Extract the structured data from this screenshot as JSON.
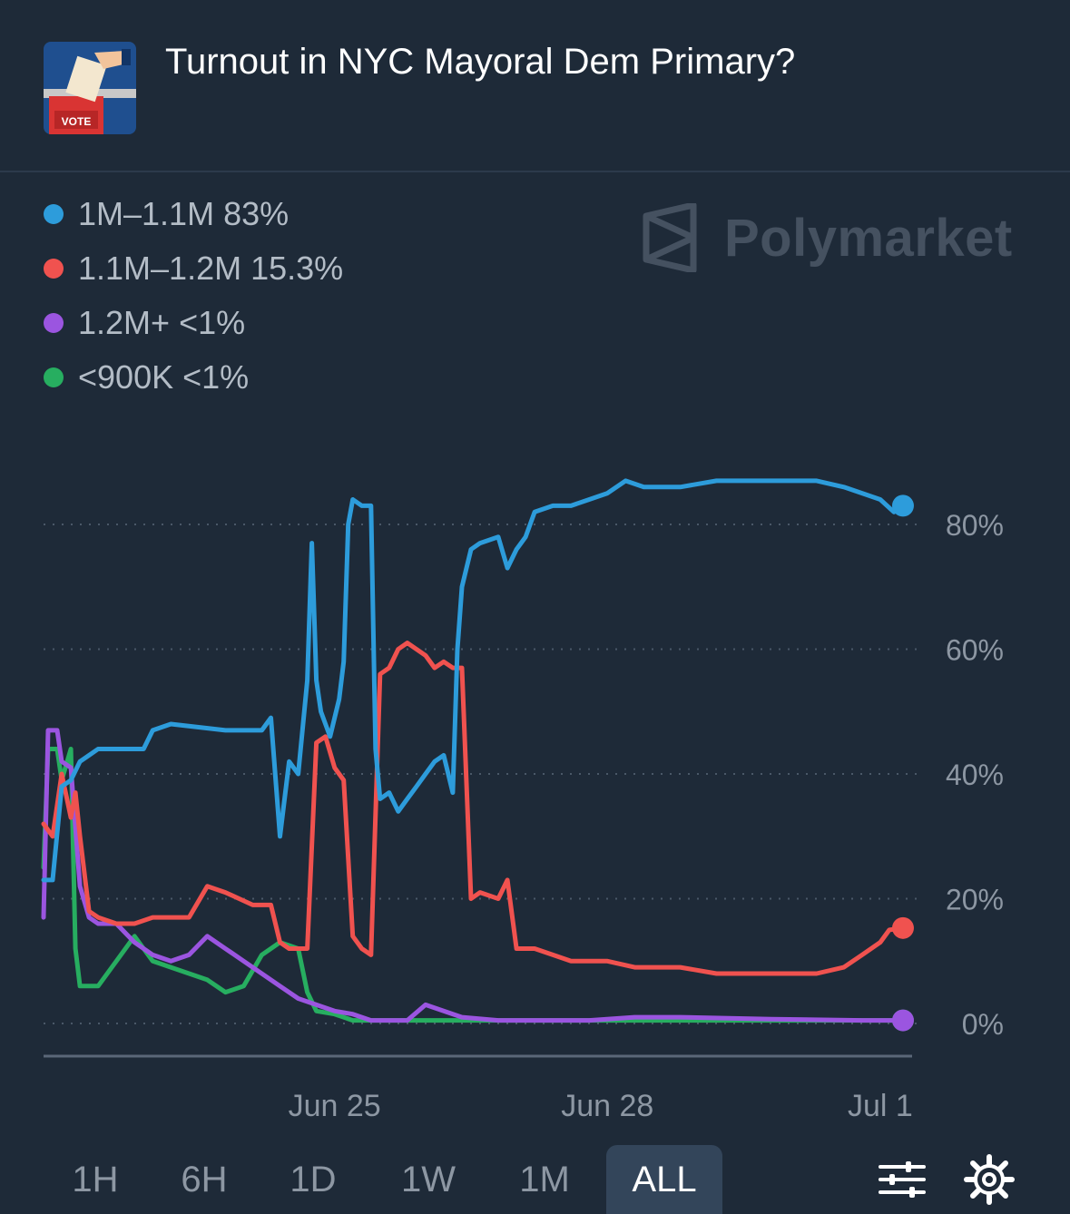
{
  "header": {
    "title": "Turnout in NYC Mayoral Dem Primary?",
    "thumbnail_icon": "ballot-box-icon",
    "thumbnail_label": "VOTE"
  },
  "watermark": {
    "text": "Polymarket"
  },
  "legend": [
    {
      "label": "1M–1.1M",
      "value": "83%",
      "color": "#2d9cdb"
    },
    {
      "label": "1.1M–1.2M",
      "value": "15.3%",
      "color": "#f0524f"
    },
    {
      "label": "1.2M+",
      "value": "<1%",
      "color": "#9b55e0"
    },
    {
      "label": "<900K",
      "value": "<1%",
      "color": "#27ae60"
    }
  ],
  "chart_data": {
    "type": "line",
    "x_ticks": [
      {
        "label": "Jun 25",
        "x": 3.2
      },
      {
        "label": "Jun 28",
        "x": 6.2
      },
      {
        "label": "Jul 1",
        "x": 9.2
      }
    ],
    "xlim": [
      0,
      9.55
    ],
    "y_ticks": [
      0,
      20,
      40,
      60,
      80
    ],
    "y_tick_labels": [
      "0%",
      "20%",
      "40%",
      "60%",
      "80%"
    ],
    "ylim": [
      0,
      93
    ],
    "y_unit": "%",
    "grid": "horizontal-dotted",
    "series": [
      {
        "name": "1M–1.1M",
        "color": "#2d9cdb",
        "points": [
          [
            0,
            23
          ],
          [
            0.1,
            23
          ],
          [
            0.2,
            38
          ],
          [
            0.3,
            39
          ],
          [
            0.4,
            42
          ],
          [
            0.5,
            43
          ],
          [
            0.6,
            44
          ],
          [
            1.1,
            44
          ],
          [
            1.2,
            47
          ],
          [
            1.4,
            48
          ],
          [
            2,
            47
          ],
          [
            2.4,
            47
          ],
          [
            2.5,
            49
          ],
          [
            2.6,
            30
          ],
          [
            2.7,
            42
          ],
          [
            2.8,
            40
          ],
          [
            2.9,
            55
          ],
          [
            2.95,
            77
          ],
          [
            3.0,
            55
          ],
          [
            3.05,
            50
          ],
          [
            3.15,
            46
          ],
          [
            3.25,
            52
          ],
          [
            3.3,
            58
          ],
          [
            3.35,
            80
          ],
          [
            3.4,
            84
          ],
          [
            3.5,
            83
          ],
          [
            3.6,
            83
          ],
          [
            3.65,
            44
          ],
          [
            3.7,
            36
          ],
          [
            3.8,
            37
          ],
          [
            3.9,
            34
          ],
          [
            4.0,
            36
          ],
          [
            4.1,
            38
          ],
          [
            4.2,
            40
          ],
          [
            4.3,
            42
          ],
          [
            4.4,
            43
          ],
          [
            4.5,
            37
          ],
          [
            4.55,
            60
          ],
          [
            4.6,
            70
          ],
          [
            4.7,
            76
          ],
          [
            4.8,
            77
          ],
          [
            5.0,
            78
          ],
          [
            5.1,
            73
          ],
          [
            5.2,
            76
          ],
          [
            5.3,
            78
          ],
          [
            5.4,
            82
          ],
          [
            5.6,
            83
          ],
          [
            5.8,
            83
          ],
          [
            6.0,
            84
          ],
          [
            6.2,
            85
          ],
          [
            6.4,
            87
          ],
          [
            6.6,
            86
          ],
          [
            7.0,
            86
          ],
          [
            7.2,
            86.5
          ],
          [
            7.4,
            87
          ],
          [
            8.5,
            87
          ],
          [
            8.8,
            86
          ],
          [
            9.0,
            85
          ],
          [
            9.2,
            84
          ],
          [
            9.35,
            82
          ],
          [
            9.45,
            83
          ]
        ]
      },
      {
        "name": "1.1M–1.2M",
        "color": "#f0524f",
        "points": [
          [
            0,
            32
          ],
          [
            0.1,
            30
          ],
          [
            0.2,
            40
          ],
          [
            0.3,
            33
          ],
          [
            0.35,
            37
          ],
          [
            0.4,
            30
          ],
          [
            0.5,
            18
          ],
          [
            0.6,
            17
          ],
          [
            0.8,
            16
          ],
          [
            1.0,
            16
          ],
          [
            1.2,
            17
          ],
          [
            1.6,
            17
          ],
          [
            1.8,
            22
          ],
          [
            2.0,
            21
          ],
          [
            2.3,
            19
          ],
          [
            2.5,
            19
          ],
          [
            2.6,
            13
          ],
          [
            2.7,
            12
          ],
          [
            2.9,
            12
          ],
          [
            3.0,
            45
          ],
          [
            3.1,
            46
          ],
          [
            3.2,
            41
          ],
          [
            3.3,
            39
          ],
          [
            3.4,
            14
          ],
          [
            3.5,
            12
          ],
          [
            3.6,
            11
          ],
          [
            3.7,
            56
          ],
          [
            3.8,
            57
          ],
          [
            3.9,
            60
          ],
          [
            4.0,
            61
          ],
          [
            4.2,
            59
          ],
          [
            4.3,
            57
          ],
          [
            4.4,
            58
          ],
          [
            4.5,
            57
          ],
          [
            4.6,
            57
          ],
          [
            4.7,
            20
          ],
          [
            4.8,
            21
          ],
          [
            5.0,
            20
          ],
          [
            5.1,
            23
          ],
          [
            5.2,
            12
          ],
          [
            5.4,
            12
          ],
          [
            5.6,
            11
          ],
          [
            5.8,
            10
          ],
          [
            6.0,
            10
          ],
          [
            6.2,
            10
          ],
          [
            6.5,
            9
          ],
          [
            7.0,
            9
          ],
          [
            7.4,
            8
          ],
          [
            8.0,
            8
          ],
          [
            8.5,
            8
          ],
          [
            8.8,
            9
          ],
          [
            9.0,
            11
          ],
          [
            9.2,
            13
          ],
          [
            9.3,
            15
          ],
          [
            9.45,
            15.3
          ]
        ]
      },
      {
        "name": "1.2M+",
        "color": "#9b55e0",
        "points": [
          [
            0,
            17
          ],
          [
            0.05,
            47
          ],
          [
            0.15,
            47
          ],
          [
            0.2,
            42
          ],
          [
            0.3,
            41
          ],
          [
            0.4,
            22
          ],
          [
            0.5,
            17
          ],
          [
            0.6,
            16
          ],
          [
            0.8,
            16
          ],
          [
            1.0,
            13
          ],
          [
            1.2,
            11
          ],
          [
            1.4,
            10
          ],
          [
            1.6,
            11
          ],
          [
            1.8,
            14
          ],
          [
            2.0,
            12
          ],
          [
            2.2,
            10
          ],
          [
            2.4,
            8
          ],
          [
            2.6,
            6
          ],
          [
            2.8,
            4
          ],
          [
            3.0,
            3
          ],
          [
            3.2,
            2
          ],
          [
            3.4,
            1.5
          ],
          [
            3.6,
            0.5
          ],
          [
            4.0,
            0.5
          ],
          [
            4.2,
            3
          ],
          [
            4.4,
            2
          ],
          [
            4.6,
            1
          ],
          [
            5.0,
            0.5
          ],
          [
            6.0,
            0.5
          ],
          [
            6.5,
            1
          ],
          [
            7.0,
            1
          ],
          [
            8.0,
            0.7
          ],
          [
            9.0,
            0.5
          ],
          [
            9.45,
            0.5
          ]
        ]
      },
      {
        "name": "<900K",
        "color": "#27ae60",
        "points": [
          [
            0,
            25
          ],
          [
            0.05,
            44
          ],
          [
            0.15,
            44
          ],
          [
            0.2,
            39
          ],
          [
            0.3,
            44
          ],
          [
            0.35,
            12
          ],
          [
            0.4,
            6
          ],
          [
            0.6,
            6
          ],
          [
            0.8,
            10
          ],
          [
            1.0,
            14
          ],
          [
            1.2,
            10
          ],
          [
            1.4,
            9
          ],
          [
            1.6,
            8
          ],
          [
            1.8,
            7
          ],
          [
            2.0,
            5
          ],
          [
            2.2,
            6
          ],
          [
            2.4,
            11
          ],
          [
            2.6,
            13
          ],
          [
            2.8,
            12
          ],
          [
            2.9,
            5
          ],
          [
            3.0,
            2
          ],
          [
            3.2,
            1.5
          ],
          [
            3.4,
            0.5
          ],
          [
            4.0,
            0.5
          ],
          [
            5.0,
            0.5
          ],
          [
            6.0,
            0.5
          ],
          [
            7.0,
            0.5
          ],
          [
            8.0,
            0.5
          ],
          [
            9.0,
            0.5
          ],
          [
            9.45,
            0.5
          ]
        ]
      }
    ]
  },
  "range_buttons": [
    {
      "label": "1H",
      "active": false
    },
    {
      "label": "6H",
      "active": false
    },
    {
      "label": "1D",
      "active": false
    },
    {
      "label": "1W",
      "active": false
    },
    {
      "label": "1M",
      "active": false
    },
    {
      "label": "ALL",
      "active": true
    }
  ],
  "controls": {
    "filter_icon": "sliders-icon",
    "settings_icon": "gear-icon"
  }
}
